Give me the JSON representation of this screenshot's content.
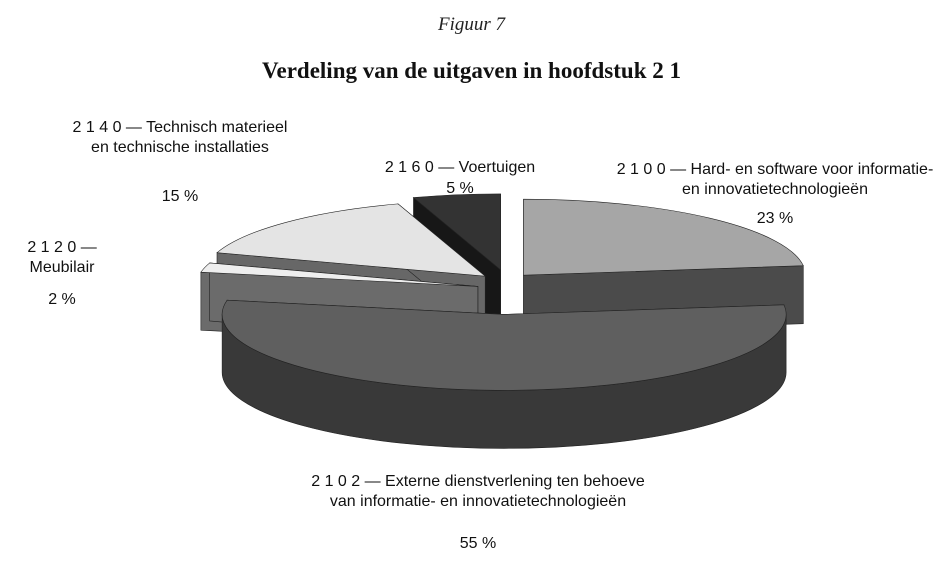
{
  "chart_data": {
    "type": "pie",
    "figure_label": "Figuur 7",
    "title": "Verdeling van de uitgaven in hoofdstuk 2 1",
    "categories": [
      "2 1 0 0 — Hard- en software voor informatie- en innovatietechnologieën",
      "2 1 0 2 — Externe dienstverlening ten behoeve van informatie- en innovatietechnologieën",
      "2 1 2 0 — Meubilair",
      "2 1 4 0 — Technisch materieel en technische installaties",
      "2 1 6 0 — Voertuigen"
    ],
    "values": [
      23,
      55,
      2,
      15,
      5
    ],
    "value_labels": [
      "23 %",
      "55 %",
      "2 %",
      "15 %",
      "5 %"
    ],
    "colors": [
      "#a6a6a6",
      "#5f5f5f",
      "#eeeeee",
      "#e4e4e4",
      "#333333"
    ]
  }
}
